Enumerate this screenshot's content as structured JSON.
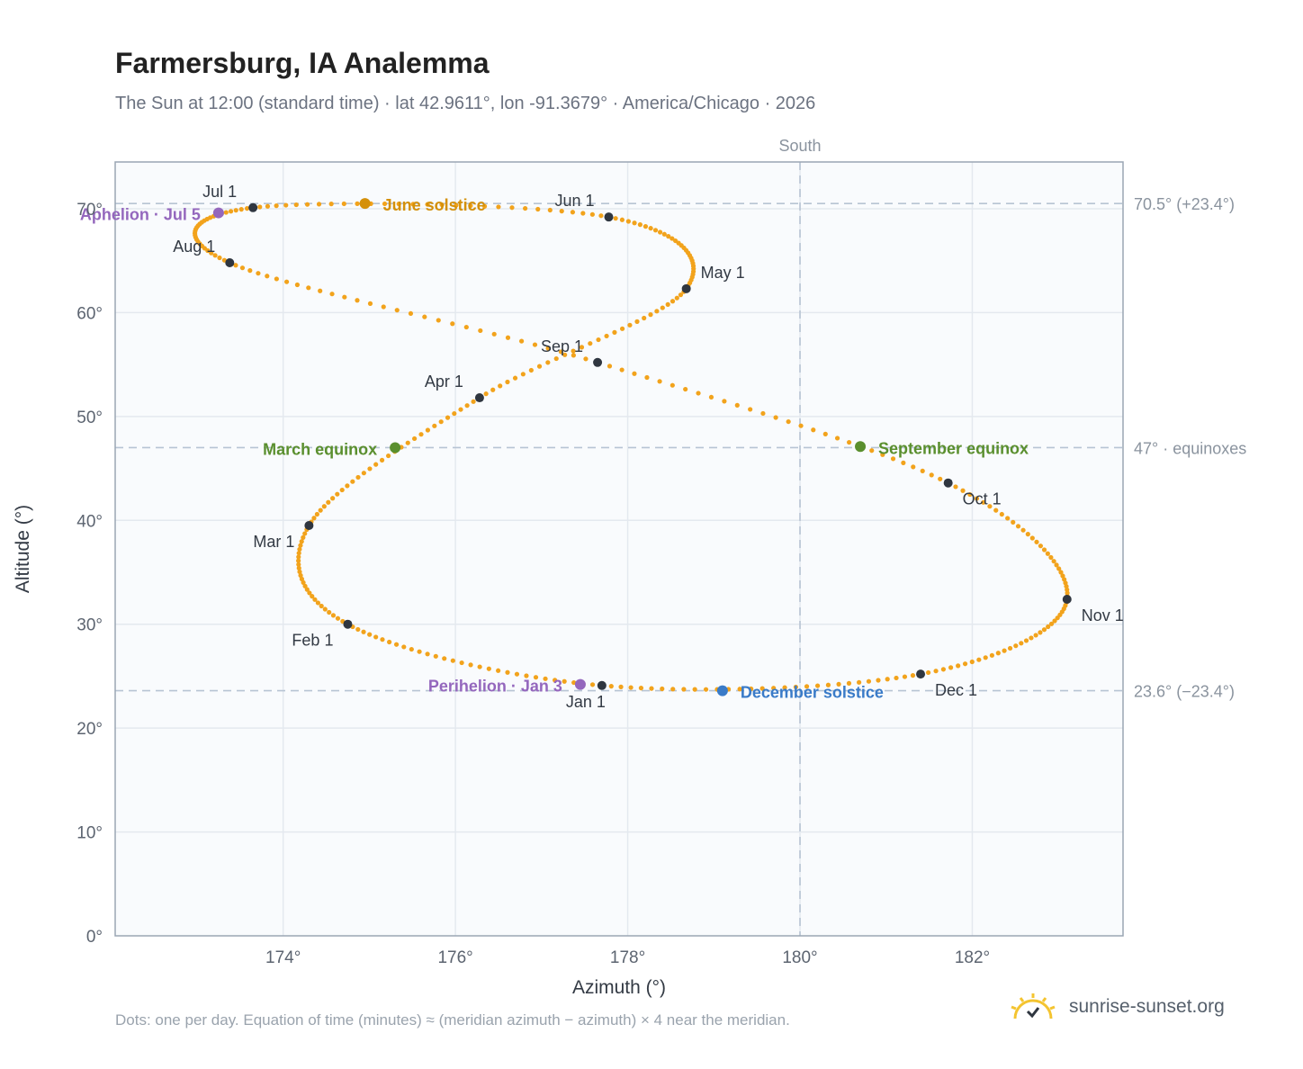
{
  "header": {
    "title": "Farmersburg, IA Analemma",
    "subtitle": "The Sun at 12:00 (standard time) · lat 42.9611°, lon -91.3679° · America/Chicago · 2026"
  },
  "footer": {
    "note": "Dots: one per day. Equation of time (minutes) ≈ (meridian azimuth − azimuth) × 4 near the meridian.",
    "brand": "sunrise-sunset.org",
    "brand_icon": "sun-logo-icon"
  },
  "colors": {
    "curve": "#f2a31c",
    "month_marker": "#2f3640",
    "june_solstice": "#d4900a",
    "december_solstice": "#3a7bc8",
    "equinox": "#5a8f2e",
    "apsis": "#9467bd",
    "reference_line": "#b7c4d3",
    "plot_bg": "#f9fbfd",
    "grid": "#e4e9ef"
  },
  "chart_data": {
    "type": "scatter",
    "xlabel": "Azimuth (°)",
    "ylabel": "Altitude (°)",
    "xlim": [
      172.05,
      183.75
    ],
    "ylim": [
      0,
      74.5
    ],
    "x_ticks": [
      174,
      176,
      178,
      180,
      182
    ],
    "x_tick_labels": [
      "174°",
      "176°",
      "178°",
      "180°",
      "182°"
    ],
    "y_ticks": [
      0,
      10,
      20,
      30,
      40,
      50,
      60,
      70
    ],
    "y_tick_labels": [
      "0°",
      "10°",
      "20°",
      "30°",
      "40°",
      "50°",
      "60°",
      "70°"
    ],
    "grid": true,
    "series_description": "one point per day",
    "month_markers": [
      {
        "label": "Jan 1",
        "az": 177.7,
        "alt": 24.1
      },
      {
        "label": "Feb 1",
        "az": 174.75,
        "alt": 30.0
      },
      {
        "label": "Mar 1",
        "az": 174.3,
        "alt": 39.5
      },
      {
        "label": "Apr 1",
        "az": 176.28,
        "alt": 51.8
      },
      {
        "label": "May 1",
        "az": 178.68,
        "alt": 62.3
      },
      {
        "label": "Jun 1",
        "az": 177.78,
        "alt": 69.2
      },
      {
        "label": "Jul 1",
        "az": 173.65,
        "alt": 70.1
      },
      {
        "label": "Aug 1",
        "az": 173.38,
        "alt": 64.8
      },
      {
        "label": "Sep 1",
        "az": 177.65,
        "alt": 55.2
      },
      {
        "label": "Oct 1",
        "az": 181.72,
        "alt": 43.6
      },
      {
        "label": "Nov 1",
        "az": 183.1,
        "alt": 32.4
      },
      {
        "label": "Dec 1",
        "az": 181.4,
        "alt": 25.2
      }
    ],
    "events": [
      {
        "label": "June solstice",
        "az": 174.95,
        "alt": 70.5
      },
      {
        "label": "December solstice",
        "az": 179.1,
        "alt": 23.6
      },
      {
        "label": "March equinox",
        "az": 175.3,
        "alt": 47.0
      },
      {
        "label": "September equinox",
        "az": 180.7,
        "alt": 47.1
      },
      {
        "label": "Aphelion · Jul 5",
        "az": 173.25,
        "alt": 69.6
      },
      {
        "label": "Perihelion · Jan 3",
        "az": 177.45,
        "alt": 24.2
      }
    ],
    "reference_lines": [
      {
        "alt": 70.5,
        "label": "70.5° (+23.4°)"
      },
      {
        "alt": 47.0,
        "label": "47° · equinoxes"
      },
      {
        "alt": 23.6,
        "label": "23.6° (−23.4°)"
      }
    ],
    "meridian": {
      "az": 180,
      "label": "South"
    }
  }
}
